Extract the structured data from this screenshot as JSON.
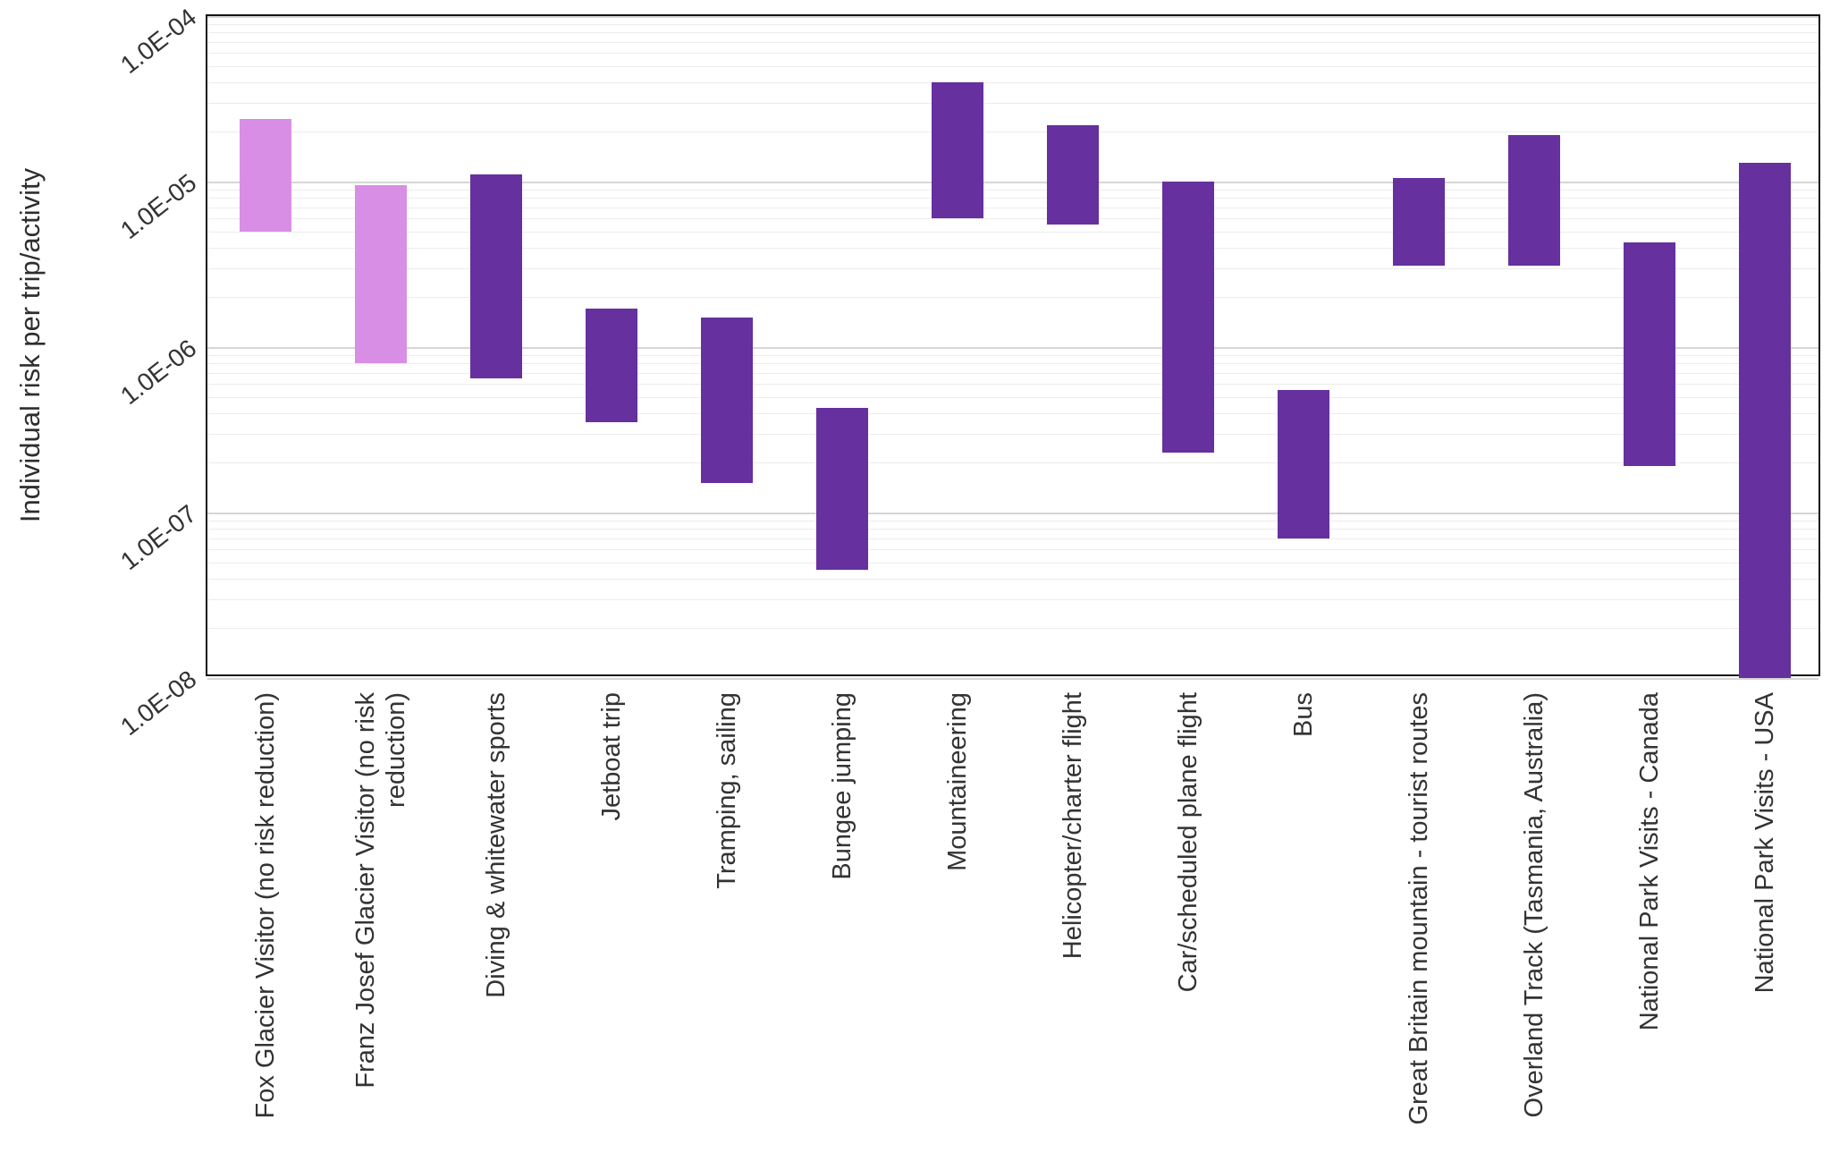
{
  "chart_data": {
    "type": "bar",
    "subtype": "floating-range-bars",
    "title": "",
    "xlabel": "",
    "ylabel": "Individual risk per trip/activity",
    "yscale": "log",
    "ylim": [
      1e-08,
      0.0001
    ],
    "grid": "horizontal-log-minor",
    "legend": "none",
    "yticks": [
      {
        "label": "1.0E-04",
        "value": 0.0001
      },
      {
        "label": "1.0E-05",
        "value": 1e-05
      },
      {
        "label": "1.0E-06",
        "value": 1e-06
      },
      {
        "label": "1.0E-07",
        "value": 1e-07
      },
      {
        "label": "1.0E-08",
        "value": 1e-08
      }
    ],
    "colors": {
      "highlight": "#d98ee6",
      "default": "#66309e"
    },
    "bars": [
      {
        "category": "Fox Glacier Visitor (no risk reduction)",
        "low": 5e-06,
        "high": 2.4e-05,
        "color": "highlight"
      },
      {
        "category": "Franz Josef Glacier Visitor (no risk reduction)",
        "low": 8e-07,
        "high": 9.5e-06,
        "color": "highlight"
      },
      {
        "category": "Diving & whitewater sports",
        "low": 6.5e-07,
        "high": 1.1e-05,
        "color": "default"
      },
      {
        "category": "Jetboat trip",
        "low": 3.5e-07,
        "high": 1.7e-06,
        "color": "default"
      },
      {
        "category": "Tramping, sailing",
        "low": 1.5e-07,
        "high": 1.5e-06,
        "color": "default"
      },
      {
        "category": "Bungee jumping",
        "low": 4.5e-08,
        "high": 4.3e-07,
        "color": "default"
      },
      {
        "category": "Mountaineering",
        "low": 6e-06,
        "high": 4e-05,
        "color": "default"
      },
      {
        "category": "Helicopter/charter flight",
        "low": 5.5e-06,
        "high": 2.2e-05,
        "color": "default"
      },
      {
        "category": "Car/scheduled plane flight",
        "low": 2.3e-07,
        "high": 1e-05,
        "color": "default"
      },
      {
        "category": "Bus",
        "low": 7e-08,
        "high": 5.5e-07,
        "color": "default"
      },
      {
        "category": "Great Britain mountain - tourist routes",
        "low": 3.1e-06,
        "high": 1.05e-05,
        "color": "default"
      },
      {
        "category": "Overland Track (Tasmania, Australia)",
        "low": 3.1e-06,
        "high": 1.9e-05,
        "color": "default"
      },
      {
        "category": "National Park Visits - Canada",
        "low": 1.9e-07,
        "high": 4.3e-06,
        "color": "default"
      },
      {
        "category": "National Park Visits - USA",
        "low": 1e-08,
        "high": 1.3e-05,
        "color": "default"
      }
    ]
  }
}
